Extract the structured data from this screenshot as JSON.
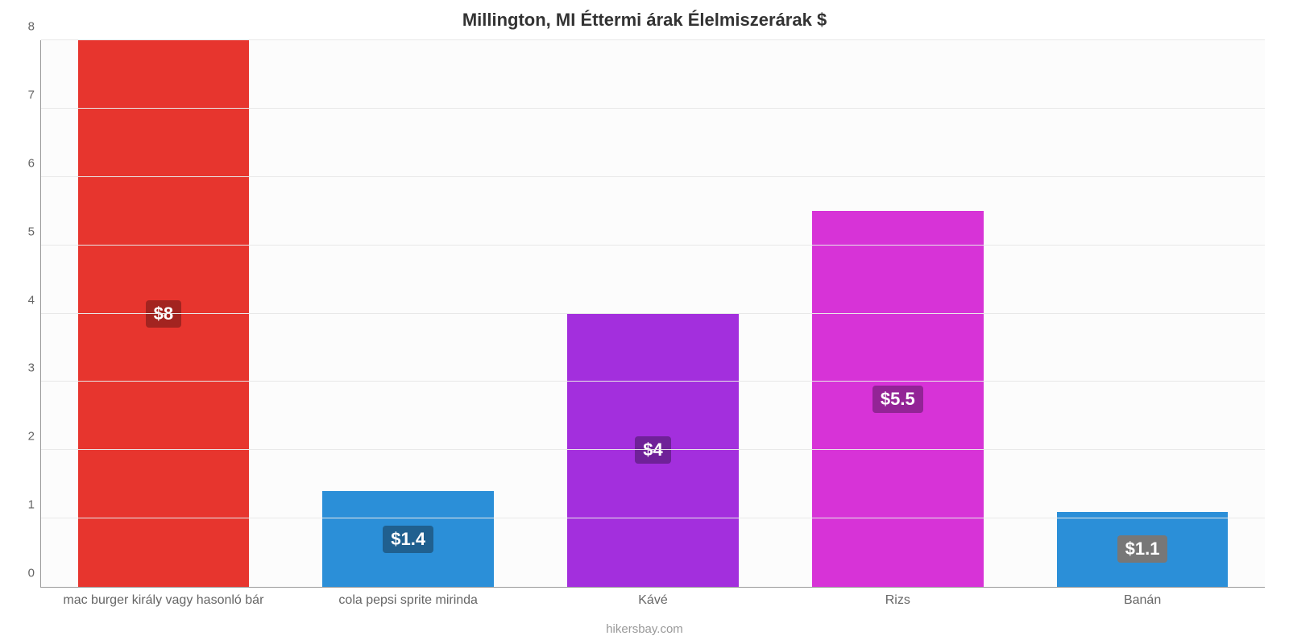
{
  "chart": {
    "type": "bar",
    "title": "Millington, MI Éttermi árak Élelmiszerárak $",
    "title_fontsize": 22,
    "title_color": "#333333",
    "credit": "hikersbay.com",
    "credit_color": "#999999",
    "credit_fontsize": 15,
    "background_color": "#ffffff",
    "plot_background_color": "#fcfcfc",
    "grid_color": "#e8e8e8",
    "axis_color": "#999999",
    "tick_label_color": "#666666",
    "tick_fontsize": 15,
    "xtick_fontsize": 16,
    "ylim": [
      0,
      8
    ],
    "ytick_step": 1,
    "bar_width_pct": 70,
    "value_label_fontsize": 22,
    "categories": [
      "mac burger király vagy hasonló bár",
      "cola pepsi sprite mirinda",
      "Kávé",
      "Rizs",
      "Banán"
    ],
    "values": [
      8,
      1.4,
      4,
      5.5,
      1.1
    ],
    "value_labels": [
      "$8",
      "$1.4",
      "$4",
      "$5.5",
      "$1.1"
    ],
    "bar_colors": [
      "#e7352e",
      "#2b8fd8",
      "#a32fdd",
      "#d733d7",
      "#2b8fd8"
    ],
    "badge_colors": [
      "#a32420",
      "#20608f",
      "#6f2198",
      "#932496",
      "#777777"
    ]
  }
}
